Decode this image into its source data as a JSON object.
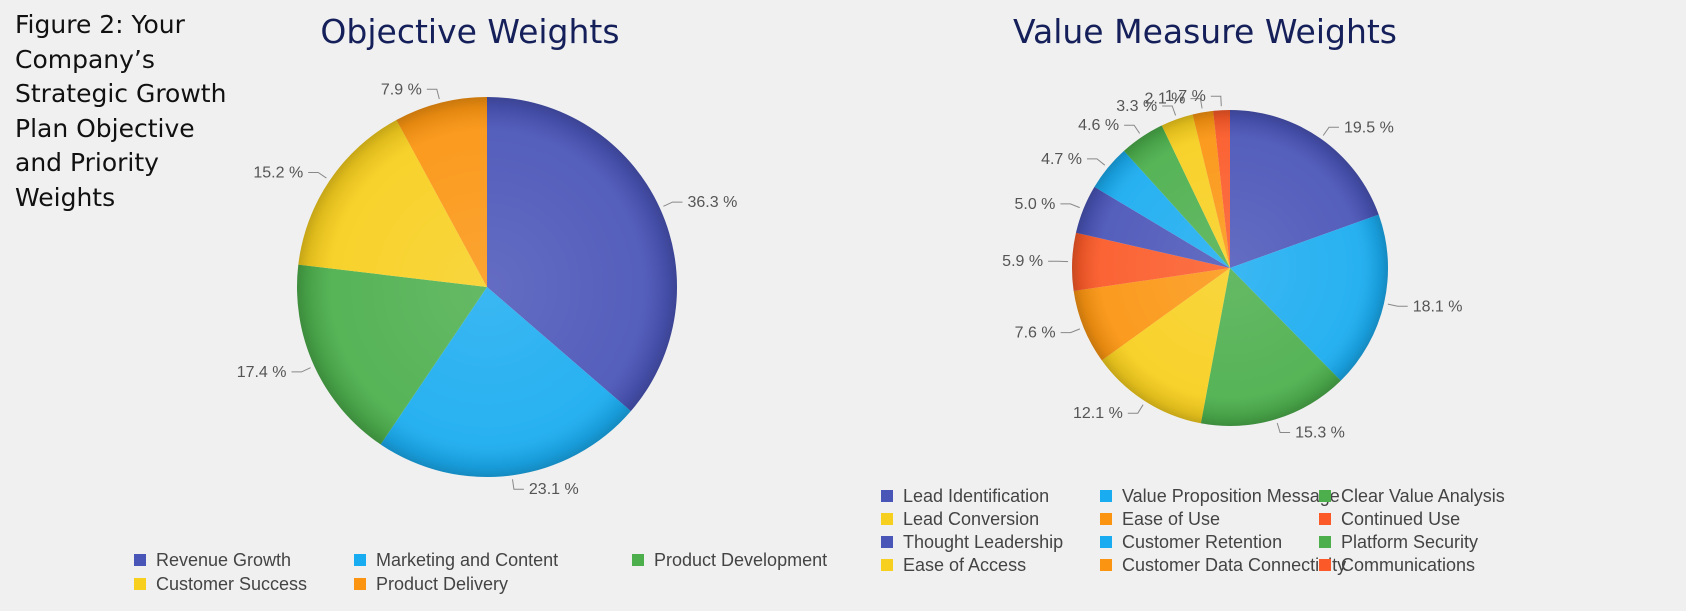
{
  "figure_caption": "Figure 2: Your Company’s Strategic Growth Plan Objective and Priority Weights",
  "chart_data": [
    {
      "type": "pie",
      "title": "Objective Weights",
      "slices": [
        {
          "name": "Revenue Growth",
          "value": 36.3,
          "label": "36.3 %",
          "color": "#4a55b8"
        },
        {
          "name": "Marketing and Content",
          "value": 23.1,
          "label": "23.1 %",
          "color": "#1aacf0"
        },
        {
          "name": "Product Development",
          "value": 17.4,
          "label": "17.4 %",
          "color": "#4caf4c"
        },
        {
          "name": "Customer Success",
          "value": 15.2,
          "label": "15.2 %",
          "color": "#f7cf1e"
        },
        {
          "name": "Product Delivery",
          "value": 7.9,
          "label": "7.9 %",
          "color": "#fb9511"
        }
      ],
      "legend_position": "bottom"
    },
    {
      "type": "pie",
      "title": "Value Measure Weights",
      "slices": [
        {
          "name": "Lead Identification",
          "value": 19.5,
          "label": "19.5 %",
          "color": "#4a55b8"
        },
        {
          "name": "Value Proposition Message",
          "value": 18.1,
          "label": "18.1 %",
          "color": "#1aacf0"
        },
        {
          "name": "Clear Value Analysis",
          "value": 15.3,
          "label": "15.3 %",
          "color": "#4caf4c"
        },
        {
          "name": "Lead Conversion",
          "value": 12.1,
          "label": "12.1 %",
          "color": "#f7cf1e"
        },
        {
          "name": "Ease of Use",
          "value": 7.6,
          "label": "7.6 %",
          "color": "#fb9511"
        },
        {
          "name": "Continued Use",
          "value": 5.9,
          "label": "5.9 %",
          "color": "#fb5a28"
        },
        {
          "name": "Thought Leadership",
          "value": 5.0,
          "label": "5.0 %",
          "color": "#4a55b8"
        },
        {
          "name": "Customer Retention",
          "value": 4.7,
          "label": "4.7 %",
          "color": "#1aacf0"
        },
        {
          "name": "Platform Security",
          "value": 4.6,
          "label": "4.6 %",
          "color": "#4caf4c"
        },
        {
          "name": "Ease of Access",
          "value": 3.3,
          "label": "3.3 %",
          "color": "#f7cf1e"
        },
        {
          "name": "Customer Data Connectivity",
          "value": 2.1,
          "label": "2.1 %",
          "color": "#fb9511"
        },
        {
          "name": "Communications",
          "value": 1.7,
          "label": "1.7 %",
          "color": "#fb5a28"
        }
      ],
      "legend_position": "bottom"
    }
  ]
}
